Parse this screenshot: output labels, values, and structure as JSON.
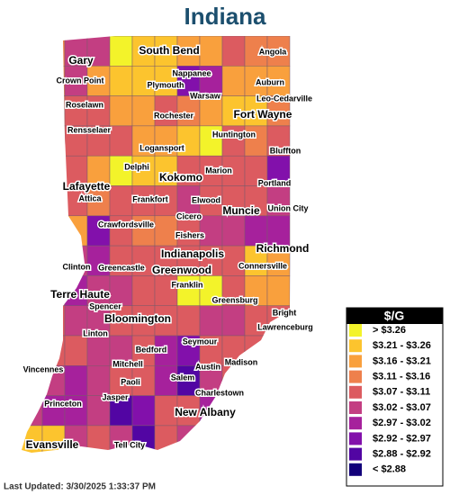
{
  "title": "Indiana",
  "cities": [
    "Gary",
    "South Bend",
    "Angola",
    "Crown Point",
    "Nappanee",
    "Auburn",
    "Plymouth",
    "Roselawn",
    "Warsaw",
    "Leo-Cedarville",
    "Rochester",
    "Fort Wayne",
    "Rensselaer",
    "Huntington",
    "Logansport",
    "Bluffton",
    "Delphi",
    "Marion",
    "Kokomo",
    "Portland",
    "Lafayette",
    "Attica",
    "Frankfort",
    "Elwood",
    "Union City",
    "Crawfordsville",
    "Cicero",
    "Muncie",
    "Fishers",
    "Richmond",
    "Indianapolis",
    "Clinton",
    "Greencastle",
    "Greenwood",
    "Connersville",
    "Terre Haute",
    "Franklin",
    "Greensburg",
    "Spencer",
    "Bright",
    "Bloomington",
    "Lawrenceburg",
    "Linton",
    "Seymour",
    "Bedford",
    "Vincennes",
    "Mitchell",
    "Madison",
    "Austin",
    "Salem",
    "Paoli",
    "Charlestown",
    "Princeton",
    "Jasper",
    "New Albany",
    "Evansville",
    "Tell City"
  ],
  "legend": {
    "title": "$/G",
    "items": [
      {
        "label": "> $3.26",
        "color": "#f3f32a"
      },
      {
        "label": "$3.21 - $3.26",
        "color": "#fcc42e"
      },
      {
        "label": "$3.16 - $3.21",
        "color": "#f9a03d"
      },
      {
        "label": "$3.11 - $3.16",
        "color": "#ee804c"
      },
      {
        "label": "$3.07 - $3.11",
        "color": "#dc5b60"
      },
      {
        "label": "$3.02 - $3.07",
        "color": "#c33e82"
      },
      {
        "label": "$2.97 - $3.02",
        "color": "#a6219c"
      },
      {
        "label": "$2.92 - $2.97",
        "color": "#8210ab"
      },
      {
        "label": "$2.88 - $2.92",
        "color": "#5205a3"
      },
      {
        "label": "< $2.88",
        "color": "#12007a"
      }
    ]
  },
  "footer": "Last Updated: 3/30/2025 1:33:37 PM"
}
